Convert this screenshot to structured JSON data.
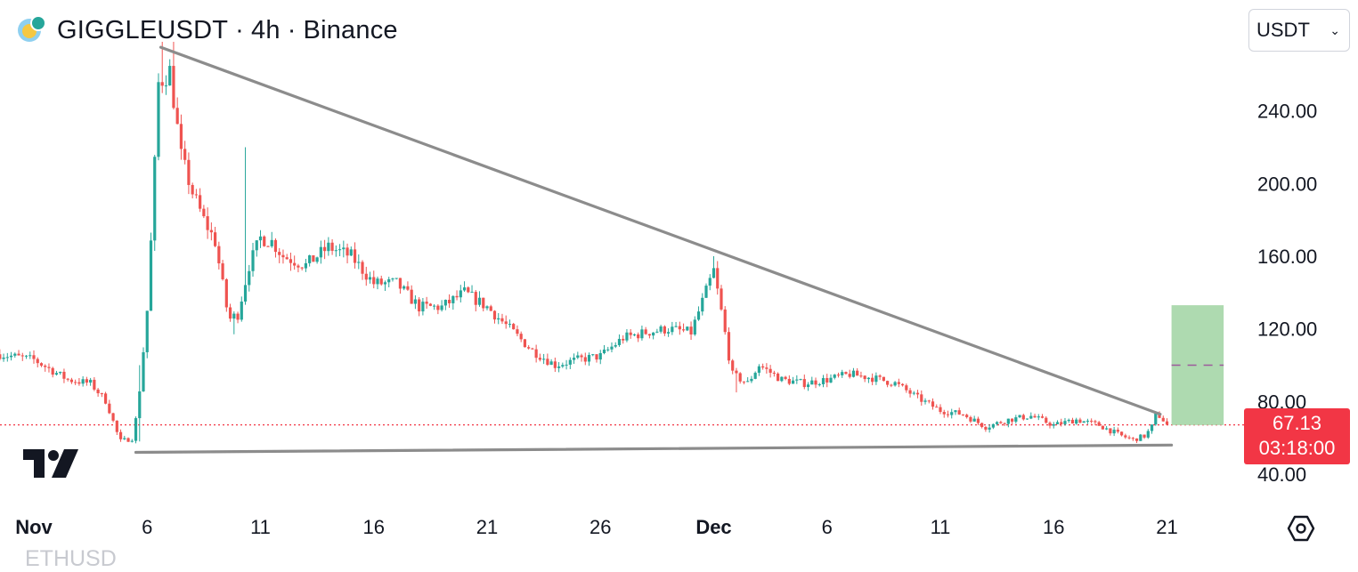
{
  "header": {
    "symbol": "GIGGLEUSDT",
    "interval": "4h",
    "exchange": "Binance",
    "separator": "·"
  },
  "currency_select": {
    "value": "USDT",
    "chevron": "⌄"
  },
  "current_price": {
    "value": "67.13",
    "countdown": "03:18:00"
  },
  "bottom_cutoff_text": "ETHUSD",
  "icons": {
    "symbol_logo": "giggle-coin-icon",
    "watermark": "tradingview-logo-icon",
    "settings": "settings-hexagon-icon"
  },
  "colors": {
    "up": "#26a69a",
    "down": "#ef5350",
    "trendline": "#8c8c8c",
    "target_box": "#a5d6a7",
    "target_dash": "#9c5b9c",
    "price_line": "#f23645"
  },
  "chart_data": {
    "type": "candlestick",
    "interval": "4h",
    "ylim": [
      26,
      282
    ],
    "y_ticks": [
      40,
      80,
      120,
      160,
      200,
      240
    ],
    "y_tick_labels": [
      "40.00",
      "80.00",
      "120.00",
      "160.00",
      "200.00",
      "240.00"
    ],
    "x_ticks": [
      {
        "label": "Nov",
        "day": 0,
        "bold": true
      },
      {
        "label": "6",
        "day": 5
      },
      {
        "label": "11",
        "day": 10
      },
      {
        "label": "16",
        "day": 15
      },
      {
        "label": "21",
        "day": 20
      },
      {
        "label": "26",
        "day": 25
      },
      {
        "label": "Dec",
        "day": 30,
        "bold": true
      },
      {
        "label": "6",
        "day": 35
      },
      {
        "label": "11",
        "day": 40
      },
      {
        "label": "16",
        "day": 45
      },
      {
        "label": "21",
        "day": 50
      }
    ],
    "close_path": [
      [
        -1.5,
        106
      ],
      [
        0.0,
        103
      ],
      [
        1.5,
        92
      ],
      [
        2.5,
        90
      ],
      [
        3.2,
        80
      ],
      [
        3.8,
        58
      ],
      [
        4.4,
        60
      ],
      [
        4.7,
        90
      ],
      [
        5.0,
        130
      ],
      [
        5.2,
        175
      ],
      [
        5.5,
        255
      ],
      [
        6.0,
        262
      ],
      [
        6.5,
        215
      ],
      [
        7.0,
        195
      ],
      [
        7.5,
        180
      ],
      [
        8.0,
        168
      ],
      [
        8.6,
        125
      ],
      [
        9.0,
        128
      ],
      [
        9.5,
        155
      ],
      [
        10.0,
        170
      ],
      [
        10.5,
        168
      ],
      [
        11.0,
        160
      ],
      [
        12.0,
        155
      ],
      [
        13.0,
        165
      ],
      [
        14.0,
        160
      ],
      [
        15.0,
        145
      ],
      [
        16.0,
        145
      ],
      [
        17.0,
        132
      ],
      [
        18.0,
        132
      ],
      [
        19.0,
        140
      ],
      [
        20.0,
        132
      ],
      [
        21.0,
        120
      ],
      [
        22.0,
        108
      ],
      [
        23.0,
        100
      ],
      [
        24.0,
        103
      ],
      [
        25.0,
        105
      ],
      [
        26.0,
        115
      ],
      [
        27.0,
        118
      ],
      [
        28.0,
        120
      ],
      [
        29.0,
        118
      ],
      [
        29.5,
        135
      ],
      [
        30.0,
        152
      ],
      [
        30.4,
        125
      ],
      [
        30.8,
        95
      ],
      [
        31.5,
        90
      ],
      [
        32.0,
        100
      ],
      [
        33.0,
        92
      ],
      [
        34.0,
        90
      ],
      [
        35.0,
        92
      ],
      [
        36.0,
        95
      ],
      [
        37.0,
        93
      ],
      [
        38.0,
        90
      ],
      [
        39.0,
        82
      ],
      [
        40.0,
        75
      ],
      [
        41.0,
        73
      ],
      [
        42.0,
        66
      ],
      [
        43.0,
        70
      ],
      [
        44.0,
        72
      ],
      [
        45.0,
        67
      ],
      [
        46.0,
        70
      ],
      [
        47.0,
        67
      ],
      [
        48.0,
        61
      ],
      [
        48.5,
        59
      ],
      [
        49.0,
        61
      ],
      [
        49.3,
        65
      ],
      [
        49.5,
        72
      ],
      [
        49.7,
        72
      ],
      [
        50.0,
        67
      ]
    ],
    "spikes": [
      {
        "day": 4.6,
        "high": 100,
        "low": 58
      },
      {
        "day": 5.6,
        "high": 278
      },
      {
        "day": 6.1,
        "high": 278
      },
      {
        "day": 8.8,
        "low": 117
      },
      {
        "day": 9.4,
        "high": 220
      },
      {
        "day": 30.0,
        "high": 160
      },
      {
        "day": 31.0,
        "low": 85
      }
    ],
    "trendlines": [
      {
        "name": "upper-resistance",
        "start": [
          5.6,
          275
        ],
        "end": [
          49.7,
          73
        ]
      },
      {
        "name": "lower-support",
        "start": [
          4.5,
          52
        ],
        "end": [
          50.2,
          56
        ]
      }
    ],
    "target_zone": {
      "day_start": 50.2,
      "day_end": 52.5,
      "low": 67,
      "high": 133,
      "target": 100
    },
    "current_price_value": 67.13
  }
}
